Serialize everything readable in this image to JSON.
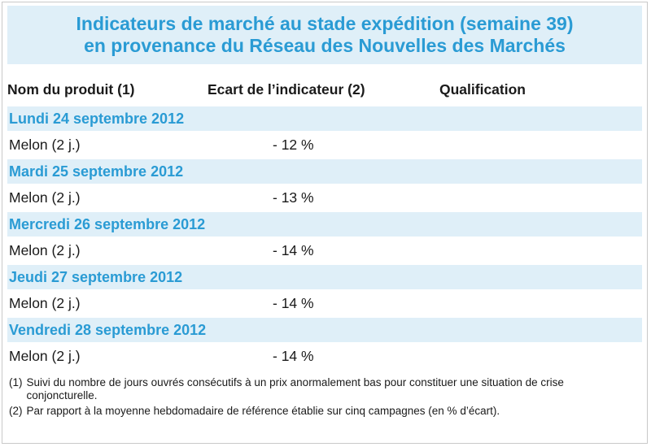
{
  "title": {
    "line1": "Indicateurs de marché au stade expédition (semaine 39)",
    "line2": "en provenance du Réseau des Nouvelles des Marchés"
  },
  "columns": {
    "product": "Nom du produit (1)",
    "indicator": "Ecart de l’indicateur (2)",
    "qualification": "Qualification"
  },
  "days": [
    {
      "date": "Lundi 24 septembre 2012",
      "product": "Melon (2 j.)",
      "value": "- 12 %",
      "qualification": ""
    },
    {
      "date": "Mardi 25 septembre 2012",
      "product": "Melon (2 j.)",
      "value": "- 13 %",
      "qualification": ""
    },
    {
      "date": "Mercredi 26 septembre 2012",
      "product": "Melon (2 j.)",
      "value": "- 14 %",
      "qualification": ""
    },
    {
      "date": "Jeudi 27 septembre 2012",
      "product": "Melon (2 j.)",
      "value": "- 14 %",
      "qualification": ""
    },
    {
      "date": "Vendredi 28 septembre 2012",
      "product": "Melon (2 j.)",
      "value": "- 14 %",
      "qualification": ""
    }
  ],
  "notes": [
    {
      "num": "(1)",
      "text": "Suivi du nombre de jours ouvrés consécutifs à un prix anormalement bas pour constituer une situation de crise conjoncturelle."
    },
    {
      "num": "(2)",
      "text": "Par rapport à la moyenne hebdomadaire de référence établie sur cinq campagnes (en % d’écart)."
    }
  ],
  "colors": {
    "accent": "#2a9bd4",
    "band": "#dfeff8"
  }
}
